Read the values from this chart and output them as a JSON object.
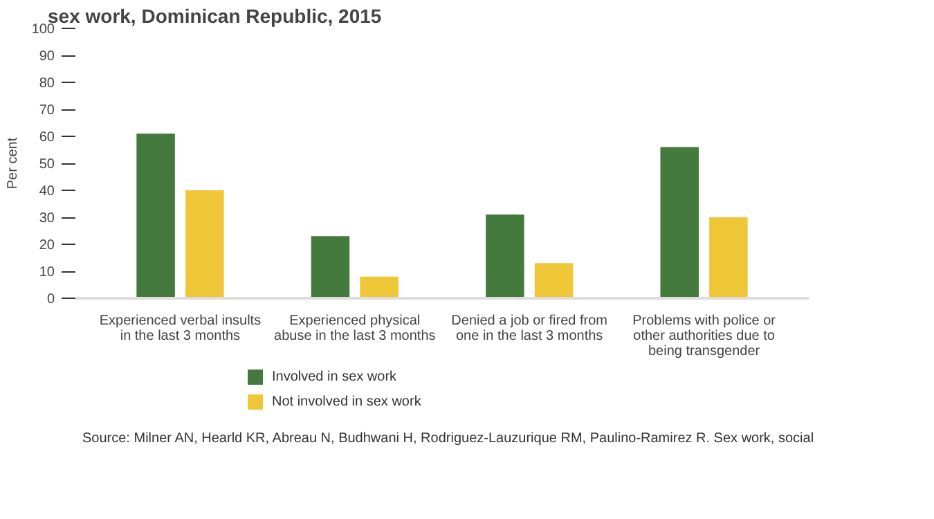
{
  "chart_data": {
    "type": "bar",
    "title": "sex work, Dominican Republic, 2015",
    "ylabel": "Per cent",
    "categories": [
      "Experienced verbal insults\nin the last 3 months",
      "Experienced physical\nabuse in the last 3 months",
      "Denied a job or fired from\none in the last 3 months",
      "Problems with police or\nother authorities due to\nbeing transgender"
    ],
    "series": [
      {
        "name": "Involved in sex work",
        "color": "#457a3e",
        "values": [
          61,
          23,
          31,
          56
        ]
      },
      {
        "name": "Not involved in sex work",
        "color": "#efc637",
        "values": [
          40,
          8,
          13,
          30
        ]
      }
    ],
    "ylim": [
      0,
      100
    ],
    "yticks": [
      0,
      10,
      20,
      30,
      40,
      50,
      60,
      70,
      80,
      90,
      100
    ],
    "grid": false,
    "legend": "bottom left",
    "annotations": [
      "Source: Milner AN, Hearld KR, Abreau N, Budhwani H, Rodriguez-Lauzurique RM, Paulino-Ramirez R. Sex work, social"
    ]
  }
}
